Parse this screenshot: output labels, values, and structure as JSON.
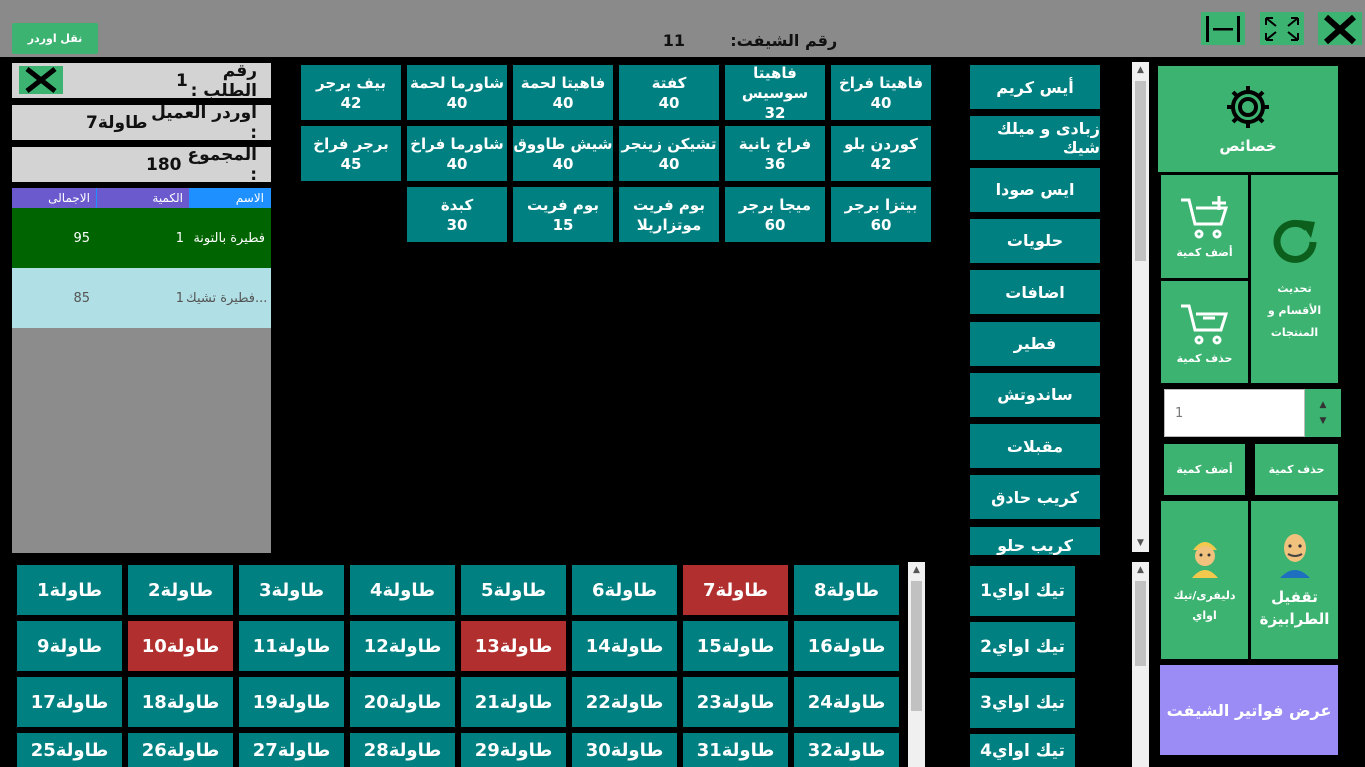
{
  "header": {
    "transfer_button": "نقل اوردر",
    "shift_label": "رقم الشيفت:",
    "shift_number": "11"
  },
  "order": {
    "number_label": "رقم الطلب :",
    "number_value": "1",
    "customer_label": "اوردر العميل :",
    "customer_value": "طاولة7",
    "total_label": "المجموع :",
    "total_value": "180",
    "columns": [
      "الاسم",
      "الكمية",
      "الاجمالى"
    ],
    "rows": [
      {
        "name": "فطيرة بالتونة",
        "qty": "1",
        "total": "95"
      },
      {
        "name": "فطيرة تشيك...",
        "qty": "1",
        "total": "85"
      }
    ]
  },
  "products": [
    {
      "name": "فاهيتا فراخ",
      "price": "40"
    },
    {
      "name": "فاهيتا سوسيس",
      "price": "32"
    },
    {
      "name": "كفتة",
      "price": "40"
    },
    {
      "name": "فاهيتا لحمة",
      "price": "40"
    },
    {
      "name": "شاورما لحمة",
      "price": "40"
    },
    {
      "name": "بيف برجر",
      "price": "42"
    },
    {
      "name": "كوردن بلو",
      "price": "42"
    },
    {
      "name": "فراخ بانية",
      "price": "36"
    },
    {
      "name": "تشيكن زينجر",
      "price": "40"
    },
    {
      "name": "شيش طاووق",
      "price": "40"
    },
    {
      "name": "شاورما فراخ",
      "price": "40"
    },
    {
      "name": "برجر فراخ",
      "price": "45"
    },
    {
      "name": "بيتزا برجر",
      "price": "60"
    },
    {
      "name": "ميجا برجر",
      "price": "60"
    },
    {
      "name": "بوم فريت",
      "price": "موتزاريلا"
    },
    {
      "name": "بوم فريت",
      "price": "15"
    },
    {
      "name": "كبدة",
      "price": "30"
    }
  ],
  "categories": [
    "أيس كريم",
    "زبادى و ميلك شيك",
    "ايس صودا",
    "حلويات",
    "اضافات",
    "فطير",
    "ساندوتش",
    "مقبلات",
    "كريب حادق",
    "كريب حلو"
  ],
  "tables": [
    "طاولة1",
    "طاولة2",
    "طاولة3",
    "طاولة4",
    "طاولة5",
    "طاولة6",
    "طاولة7",
    "طاولة8",
    "طاولة9",
    "طاولة10",
    "طاولة11",
    "طاولة12",
    "طاولة13",
    "طاولة14",
    "طاولة15",
    "طاولة16",
    "طاولة17",
    "طاولة18",
    "طاولة19",
    "طاولة20",
    "طاولة21",
    "طاولة22",
    "طاولة23",
    "طاولة24",
    "طاولة25",
    "طاولة26",
    "طاولة27",
    "طاولة28",
    "طاولة29",
    "طاولة30",
    "طاولة31",
    "طاولة32"
  ],
  "occupied_tables": [
    "طاولة7",
    "طاولة10",
    "طاولة13"
  ],
  "takeaway": [
    "تيك اواي1",
    "تيك اواي2",
    "تيك اواي3",
    "تيك اواي4"
  ],
  "right_panel": {
    "properties": "خصائص",
    "add_qty": "أضف كمية",
    "remove_qty": "حذف كمية",
    "refresh": "تحديث الأقسام و المنتجات",
    "qty_value": "1",
    "add_qty_small": "أضف كمية",
    "remove_qty_small": "حذف كمية",
    "delivery": "دليفرى/تيك اواي",
    "lock_tables": "تقفيل الطرابيزة",
    "shift_invoices": "عرض فواتير الشيفت"
  },
  "colors": {
    "accent_green": "#3cb371",
    "teal": "#008080",
    "occupied_red": "#b22f2f",
    "selected_row": "#006400",
    "purple": "#9b8cf5"
  }
}
